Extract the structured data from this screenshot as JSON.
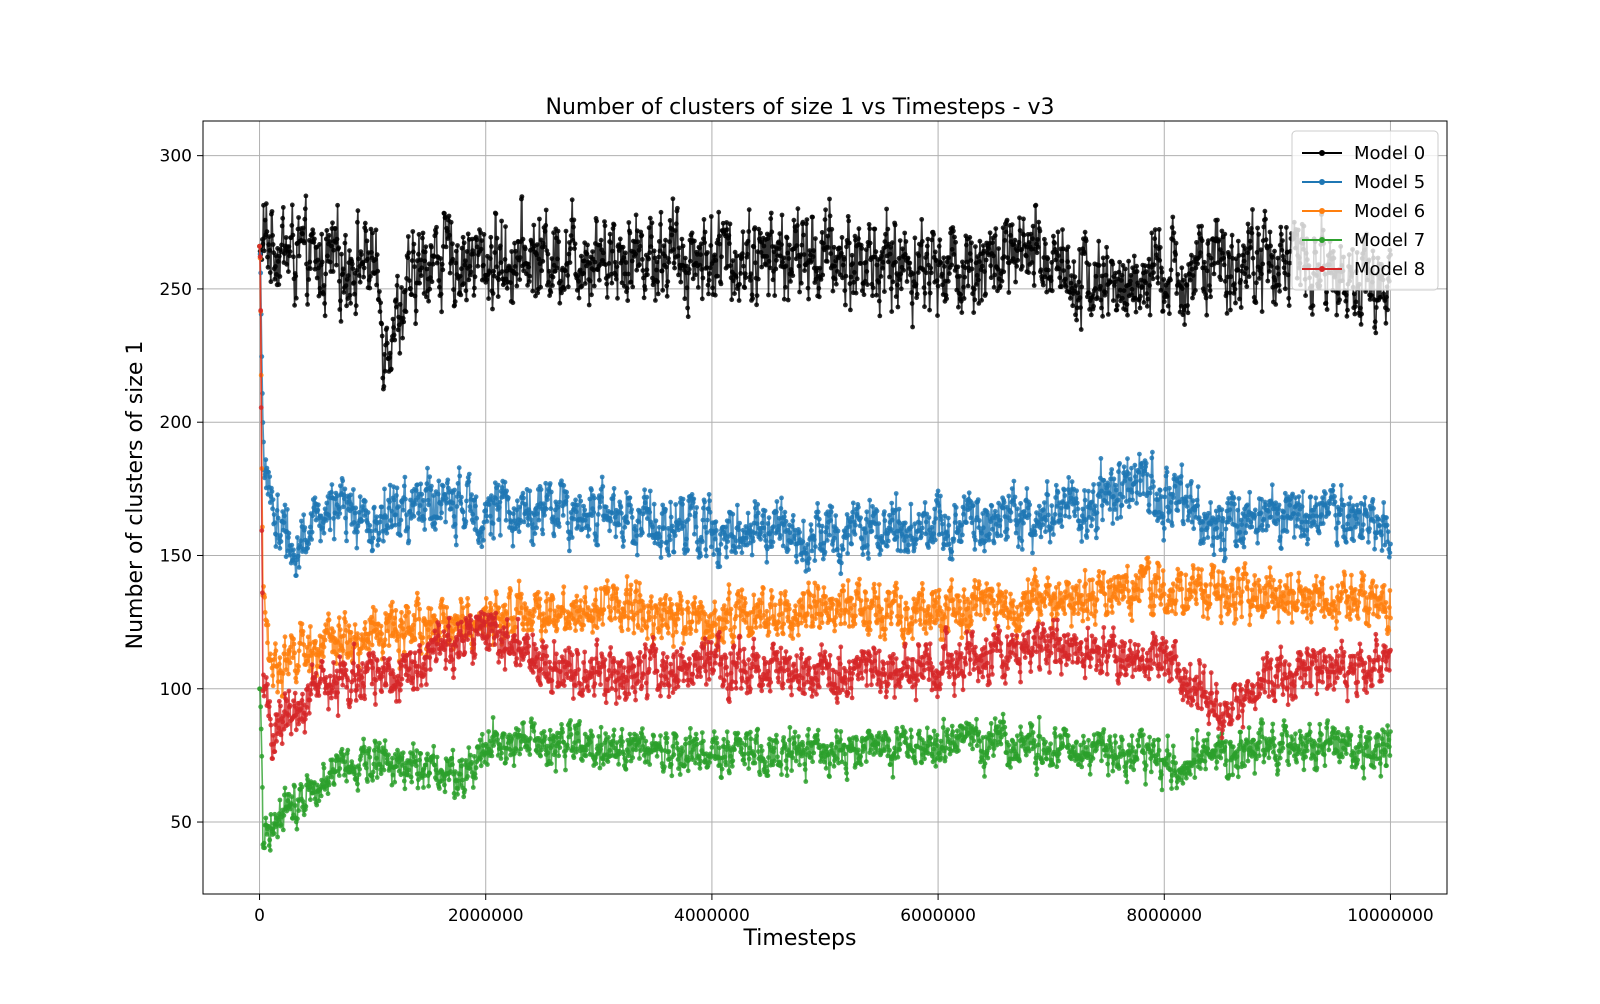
{
  "chart_data": {
    "type": "line",
    "title": "Number of clusters of size 1 vs Timesteps - v3",
    "xlabel": "Timesteps",
    "ylabel": "Number of clusters of size 1",
    "xlim": [
      -500000,
      10500000
    ],
    "ylim": [
      23,
      313
    ],
    "xticks": [
      0,
      2000000,
      4000000,
      6000000,
      8000000,
      10000000
    ],
    "yticks": [
      50,
      100,
      150,
      200,
      250,
      300
    ],
    "grid": true,
    "legend_position": "top-right",
    "series": [
      {
        "name": "Model 0",
        "color": "#000000",
        "start": 266,
        "mean": 260,
        "amplitude": 14,
        "noise": 12,
        "anchors": [
          [
            0,
            266
          ],
          [
            100000,
            268
          ],
          [
            500000,
            258
          ],
          [
            1000000,
            262
          ],
          [
            1100000,
            232
          ],
          [
            1500000,
            262
          ],
          [
            2000000,
            260
          ],
          [
            3000000,
            264
          ],
          [
            4000000,
            262
          ],
          [
            5000000,
            262
          ],
          [
            6000000,
            258
          ],
          [
            7000000,
            262
          ],
          [
            7500000,
            250
          ],
          [
            8000000,
            254
          ],
          [
            9000000,
            262
          ],
          [
            10000000,
            250
          ]
        ]
      },
      {
        "name": "Model 5",
        "color": "#1f77b4",
        "start": 266,
        "mean": 163,
        "amplitude": 8,
        "noise": 8,
        "anchors": [
          [
            0,
            266
          ],
          [
            20000,
            200
          ],
          [
            100000,
            168
          ],
          [
            300000,
            152
          ],
          [
            600000,
            168
          ],
          [
            1000000,
            162
          ],
          [
            1500000,
            170
          ],
          [
            2000000,
            167
          ],
          [
            3000000,
            166
          ],
          [
            4000000,
            160
          ],
          [
            5000000,
            158
          ],
          [
            6000000,
            162
          ],
          [
            7000000,
            165
          ],
          [
            7800000,
            176
          ],
          [
            8500000,
            162
          ],
          [
            9000000,
            166
          ],
          [
            10000000,
            160
          ]
        ]
      },
      {
        "name": "Model 6",
        "color": "#ff7f0e",
        "start": 266,
        "mean": 128,
        "amplitude": 8,
        "noise": 7,
        "anchors": [
          [
            0,
            266
          ],
          [
            20000,
            140
          ],
          [
            100000,
            108
          ],
          [
            500000,
            115
          ],
          [
            1000000,
            120
          ],
          [
            2000000,
            126
          ],
          [
            3000000,
            132
          ],
          [
            4000000,
            126
          ],
          [
            5000000,
            130
          ],
          [
            6000000,
            130
          ],
          [
            7000000,
            133
          ],
          [
            8000000,
            138
          ],
          [
            9000000,
            134
          ],
          [
            10000000,
            130
          ]
        ]
      },
      {
        "name": "Model 7",
        "color": "#2ca02c",
        "start": 100,
        "mean": 76,
        "amplitude": 6,
        "noise": 6,
        "anchors": [
          [
            0,
            100
          ],
          [
            30000,
            45
          ],
          [
            100000,
            50
          ],
          [
            500000,
            66
          ],
          [
            1000000,
            74
          ],
          [
            1800000,
            68
          ],
          [
            2000000,
            80
          ],
          [
            3000000,
            78
          ],
          [
            4000000,
            76
          ],
          [
            5000000,
            75
          ],
          [
            6000000,
            78
          ],
          [
            7000000,
            80
          ],
          [
            8000000,
            72
          ],
          [
            9000000,
            78
          ],
          [
            10000000,
            78
          ]
        ]
      },
      {
        "name": "Model 8",
        "color": "#d62728",
        "start": 266,
        "mean": 108,
        "amplitude": 8,
        "noise": 7,
        "anchors": [
          [
            0,
            266
          ],
          [
            20000,
            110
          ],
          [
            100000,
            82
          ],
          [
            500000,
            100
          ],
          [
            1000000,
            104
          ],
          [
            2000000,
            120
          ],
          [
            2500000,
            110
          ],
          [
            3000000,
            104
          ],
          [
            4000000,
            108
          ],
          [
            5000000,
            104
          ],
          [
            6000000,
            110
          ],
          [
            7000000,
            116
          ],
          [
            8000000,
            110
          ],
          [
            8600000,
            92
          ],
          [
            9000000,
            104
          ],
          [
            10000000,
            110
          ]
        ]
      }
    ]
  }
}
